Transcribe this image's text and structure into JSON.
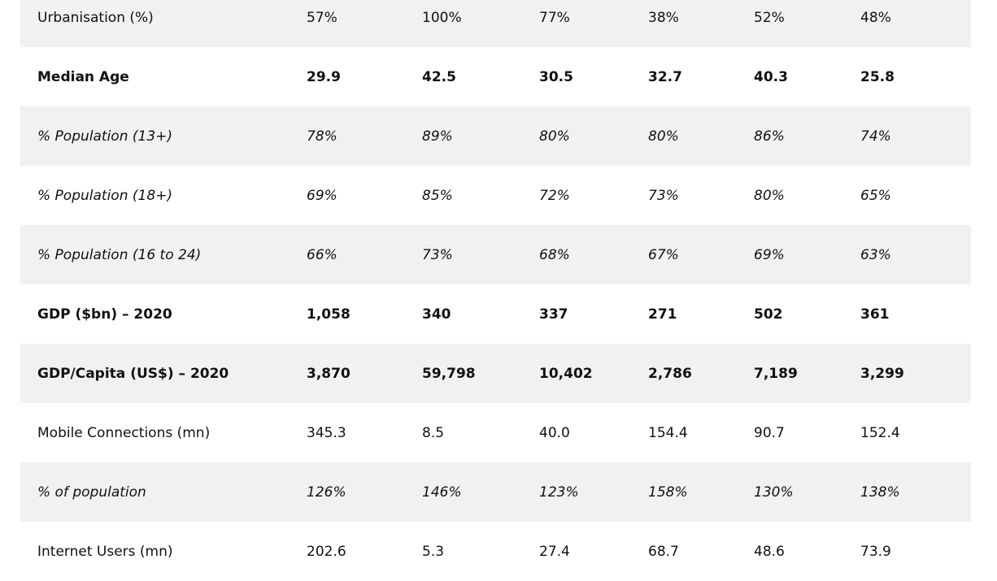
{
  "table": {
    "rows": [
      {
        "style": "normal",
        "label": "Urbanisation (%)",
        "values": [
          "57%",
          "100%",
          "77%",
          "38%",
          "52%",
          "48%"
        ]
      },
      {
        "style": "bold",
        "label": "Median Age",
        "values": [
          "29.9",
          "42.5",
          "30.5",
          "32.7",
          "40.3",
          "25.8"
        ]
      },
      {
        "style": "italic",
        "label": "% Population (13+)",
        "values": [
          "78%",
          "89%",
          "80%",
          "80%",
          "86%",
          "74%"
        ]
      },
      {
        "style": "italic",
        "label": "% Population (18+)",
        "values": [
          "69%",
          "85%",
          "72%",
          "73%",
          "80%",
          "65%"
        ]
      },
      {
        "style": "italic",
        "label": "% Population (16 to 24)",
        "values": [
          "66%",
          "73%",
          "68%",
          "67%",
          "69%",
          "63%"
        ]
      },
      {
        "style": "bold",
        "label": "GDP ($bn) – 2020",
        "values": [
          "1,058",
          "340",
          "337",
          "271",
          "502",
          "361"
        ]
      },
      {
        "style": "bold",
        "label": "GDP/Capita (US$) – 2020",
        "values": [
          "3,870",
          "59,798",
          "10,402",
          "2,786",
          "7,189",
          "3,299"
        ]
      },
      {
        "style": "normal",
        "label": "Mobile Connections (mn)",
        "values": [
          "345.3",
          "8.5",
          "40.0",
          "154.4",
          "90.7",
          "152.4"
        ]
      },
      {
        "style": "italic",
        "label": "% of population",
        "values": [
          "126%",
          "146%",
          "123%",
          "158%",
          "130%",
          "138%"
        ]
      },
      {
        "style": "normal",
        "label": "Internet Users (mn)",
        "values": [
          "202.6",
          "5.3",
          "27.4",
          "68.7",
          "48.6",
          "73.9"
        ]
      }
    ]
  }
}
